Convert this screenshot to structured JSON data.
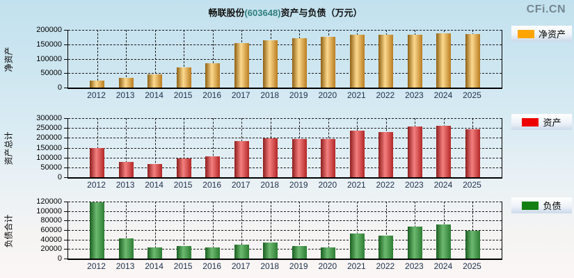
{
  "page": {
    "title_prefix": "畅联股份",
    "title_code": "(603648)",
    "title_suffix": "资产与负债（万元）",
    "watermark": "CFi.CN"
  },
  "colors": {
    "background_top": "#c2e1ee",
    "background_bottom": "#fbf6f5",
    "gridline": "#1a1a1a",
    "net_assets_orange": "#FFA400",
    "assets_red": "#EE0000",
    "liabilities_green": "#148014"
  },
  "chart_data": [
    {
      "type": "bar",
      "name": "net-assets",
      "ylabel": "净资产",
      "legend": "净资产",
      "swatch_color": "#FFA400",
      "bar_gradient": [
        "#8f6012",
        "#fcd98e",
        "#b97c1f"
      ],
      "ylim": [
        0,
        200000
      ],
      "ytick_step": 50000,
      "grid": true,
      "legend_position": "right",
      "categories": [
        "2012",
        "2013",
        "2014",
        "2015",
        "2016",
        "2017",
        "2018",
        "2019",
        "2020",
        "2021",
        "2022",
        "2023",
        "2024",
        "2025"
      ],
      "values": [
        25000,
        33000,
        46000,
        71000,
        84000,
        155000,
        165000,
        170000,
        175000,
        182000,
        182000,
        184000,
        187000,
        185000
      ]
    },
    {
      "type": "bar",
      "name": "total-assets",
      "ylabel": "资产总计",
      "legend": "资产",
      "swatch_color": "#EE0000",
      "bar_gradient": [
        "#8f1d1d",
        "#f47f7f",
        "#b32626"
      ],
      "ylim": [
        0,
        300000
      ],
      "ytick_step": 50000,
      "grid": true,
      "legend_position": "right",
      "categories": [
        "2012",
        "2013",
        "2014",
        "2015",
        "2016",
        "2017",
        "2018",
        "2019",
        "2020",
        "2021",
        "2022",
        "2023",
        "2024",
        "2025"
      ],
      "values": [
        148000,
        78000,
        68000,
        95000,
        107000,
        185000,
        198000,
        194000,
        195000,
        235000,
        231000,
        257000,
        260000,
        244000
      ]
    },
    {
      "type": "bar",
      "name": "total-liabilities",
      "ylabel": "负债合计",
      "legend": "负债",
      "swatch_color": "#148014",
      "bar_gradient": [
        "#1a5e1f",
        "#6cb970",
        "#2d7d33"
      ],
      "ylim": [
        0,
        120000
      ],
      "ytick_step": 20000,
      "grid": true,
      "legend_position": "right",
      "categories": [
        "2012",
        "2013",
        "2014",
        "2015",
        "2016",
        "2017",
        "2018",
        "2019",
        "2020",
        "2021",
        "2022",
        "2023",
        "2024",
        "2025"
      ],
      "values": [
        119000,
        42000,
        24000,
        26000,
        24000,
        29000,
        33000,
        26000,
        23000,
        52000,
        48000,
        67000,
        72000,
        59000
      ]
    }
  ]
}
